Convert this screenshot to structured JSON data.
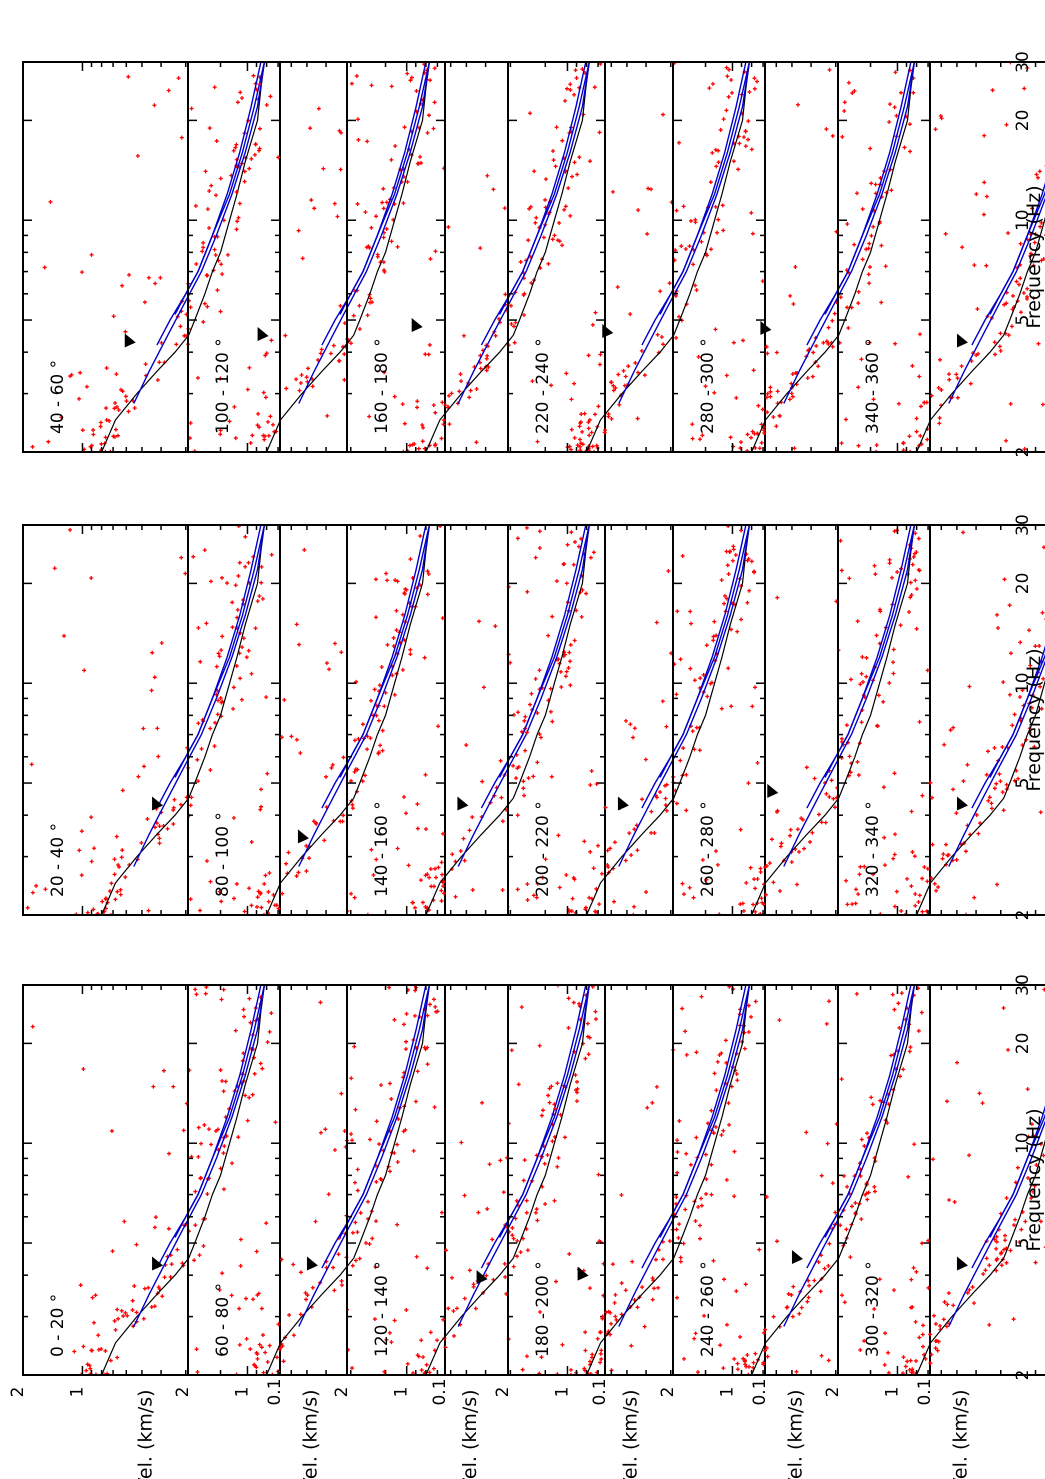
{
  "figure": {
    "xlabel": "Frequency (Hz)",
    "ylabel": "Vel. (km/s)",
    "xticks": [
      "2",
      "5",
      "10",
      "20",
      "30"
    ],
    "yticks": [
      "0.1",
      "1",
      "2"
    ],
    "colors": {
      "picks": "#ff0000",
      "model": "#0000cc",
      "reference": "#000000"
    }
  },
  "chart_data": {
    "type": "scatter",
    "rotated": "90 degrees counter-clockwise",
    "xlabel": "Frequency (Hz)",
    "ylabel": "Vel. (km/s)",
    "xscale": "log",
    "yscale": "log",
    "xlim": [
      2,
      30
    ],
    "ylim": [
      0.1,
      2
    ],
    "reference_curve": {
      "freq": [
        2,
        2.5,
        3,
        3.5,
        4,
        4.5,
        5,
        6,
        7,
        8,
        10,
        12,
        15,
        20,
        25,
        30
      ],
      "vel": [
        0.8,
        0.68,
        0.53,
        0.42,
        0.34,
        0.29,
        0.27,
        0.24,
        0.22,
        0.2,
        0.18,
        0.165,
        0.15,
        0.13,
        0.125,
        0.12
      ]
    },
    "blue_curves": [
      {
        "freq": [
          2.8,
          3.5,
          4.5,
          5.5,
          7,
          9,
          12,
          16,
          22,
          30
        ],
        "vel": [
          0.55,
          0.46,
          0.37,
          0.31,
          0.25,
          0.21,
          0.175,
          0.15,
          0.13,
          0.12
        ]
      },
      {
        "freq": [
          4.2,
          5,
          6,
          7,
          9,
          12,
          16,
          22,
          30
        ],
        "vel": [
          0.42,
          0.36,
          0.3,
          0.26,
          0.22,
          0.18,
          0.155,
          0.135,
          0.12
        ]
      },
      {
        "freq": [
          5.2,
          6,
          7,
          9,
          12,
          16,
          22,
          30
        ],
        "vel": [
          0.34,
          0.3,
          0.26,
          0.22,
          0.185,
          0.16,
          0.14,
          0.125
        ]
      }
    ],
    "panels": [
      {
        "label": "0 - 20 °",
        "arrow": [
          4.4,
          0.4
        ]
      },
      {
        "label": "20 - 40 °",
        "arrow": [
          4.4,
          0.4
        ]
      },
      {
        "label": "40 - 60 °",
        "arrow": [
          4.4,
          0.55
        ]
      },
      {
        "label": "60 - 80 °",
        "arrow": [
          4.4,
          0.45
        ]
      },
      {
        "label": "80 - 100 °",
        "arrow": [
          3.5,
          0.5
        ]
      },
      {
        "label": "100 - 120 °",
        "arrow": [
          4.6,
          0.8
        ]
      },
      {
        "label": "120 - 140 °",
        "arrow": [
          4.0,
          0.4
        ]
      },
      {
        "label": "140 - 160 °",
        "arrow": [
          4.4,
          0.5
        ]
      },
      {
        "label": "160 - 180 °",
        "arrow": [
          4.9,
          0.85
        ]
      },
      {
        "label": "180 - 200 °",
        "arrow": [
          4.1,
          0.8
        ]
      },
      {
        "label": "200 - 220 °",
        "arrow": [
          4.4,
          0.5
        ]
      },
      {
        "label": "220 - 240 °",
        "arrow": [
          4.7,
          0.6
        ]
      },
      {
        "label": "240 - 260 °",
        "arrow": [
          4.6,
          0.45
        ]
      },
      {
        "label": "260 - 280 °",
        "arrow": [
          4.8,
          0.6
        ]
      },
      {
        "label": "280 - 300 °",
        "arrow": [
          4.8,
          0.65
        ]
      },
      {
        "label": "300 - 320 °",
        "arrow": [
          4.4,
          0.45
        ]
      },
      {
        "label": "320 - 340 °",
        "arrow": [
          4.4,
          0.45
        ]
      },
      {
        "label": "340 - 360 °",
        "arrow": [
          4.4,
          0.45
        ]
      }
    ]
  }
}
